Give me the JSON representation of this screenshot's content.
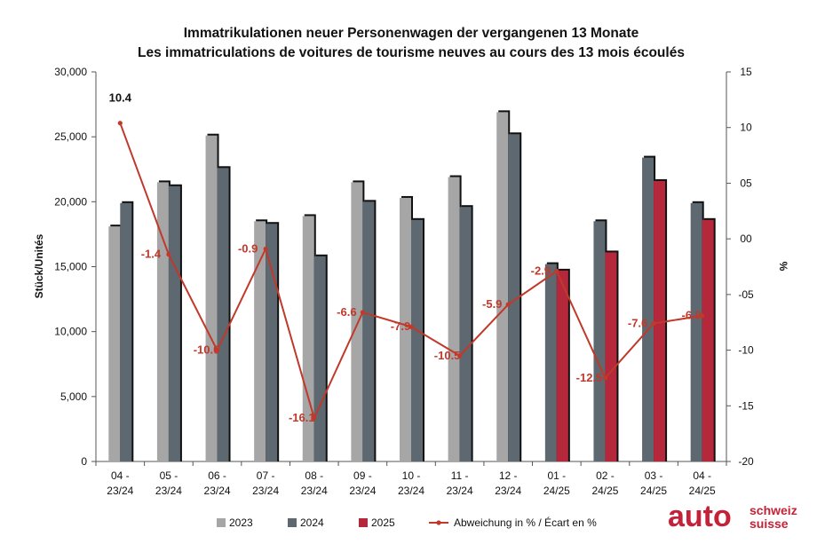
{
  "chart_data": {
    "type": "bar",
    "title": "Immatrikulationen neuer Personenwagen der vergangenen 13 Monate",
    "subtitle": "Les immatriculations de voitures de tourisme neuves au cours des 13 mois écoulés",
    "ylabel": "Stück/Unités",
    "y2label": "%",
    "ylim": [
      0,
      30000
    ],
    "yticks": [
      0,
      5000,
      10000,
      15000,
      20000,
      25000,
      30000
    ],
    "yticklabels": [
      "0",
      "5,000",
      "10,000",
      "15,000",
      "20,000",
      "25,000",
      "30,000"
    ],
    "y2lim": [
      -20,
      15
    ],
    "y2ticks": [
      15,
      10,
      5,
      0,
      -5,
      -10,
      -15,
      -20
    ],
    "y2ticklabels": [
      "15",
      "10",
      "05",
      "00",
      "-05",
      "-10",
      "-15",
      "-20"
    ],
    "categories": [
      [
        "04 -",
        "23/24"
      ],
      [
        "05 -",
        "23/24"
      ],
      [
        "06 -",
        "23/24"
      ],
      [
        "07 -",
        "23/24"
      ],
      [
        "08 -",
        "23/24"
      ],
      [
        "09 -",
        "23/24"
      ],
      [
        "10 -",
        "23/24"
      ],
      [
        "11 -",
        "23/24"
      ],
      [
        "12 -",
        "23/24"
      ],
      [
        "01 -",
        "24/25"
      ],
      [
        "02 -",
        "24/25"
      ],
      [
        "03 -",
        "24/25"
      ],
      [
        "04 -",
        "24/25"
      ]
    ],
    "series": [
      {
        "name": "2023",
        "color": "#a6a6a6",
        "values": [
          18100,
          21500,
          25100,
          18500,
          18900,
          21500,
          20300,
          21900,
          26900,
          null,
          null,
          null,
          null
        ]
      },
      {
        "name": "2024",
        "color": "#5d6870",
        "values": [
          19900,
          21200,
          22600,
          18300,
          15800,
          20000,
          18600,
          19600,
          25200,
          15200,
          18500,
          23400,
          19900
        ]
      },
      {
        "name": "2025",
        "color": "#b5283b",
        "values": [
          null,
          null,
          null,
          null,
          null,
          null,
          null,
          null,
          null,
          14700,
          16100,
          21600,
          18600
        ]
      }
    ],
    "line": {
      "name": "Abweichung in % / Écart en %",
      "color": "#c0392b",
      "values": [
        10.4,
        -1.4,
        -10.0,
        -0.9,
        -16.1,
        -6.6,
        -7.9,
        -10.5,
        -5.9,
        -2.9,
        -12.5,
        -7.6,
        -6.9
      ],
      "labels": [
        "10.4",
        "-1.4",
        "-10.0",
        "-0.9",
        "-16.1",
        "-6.6",
        "-7.9",
        "-10.5",
        "-5.9",
        "-2.9",
        "-12.5",
        "-7.6",
        "-6.9"
      ]
    },
    "legend": "bottom",
    "grid": false
  },
  "logo": {
    "main": "auto",
    "line1": "schweiz",
    "line2": "suisse"
  }
}
